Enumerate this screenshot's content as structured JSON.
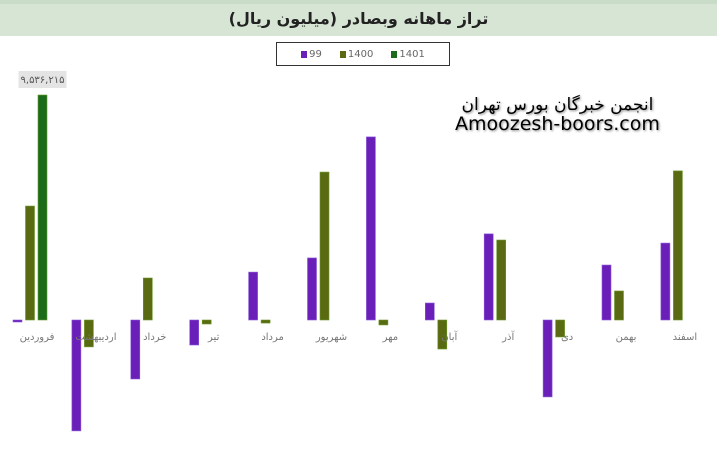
{
  "header": {
    "title": "تراز ماهانه وبصادر (میلیون ریال)"
  },
  "watermark": {
    "line1": "انجمن خبرگان بورس تهران",
    "line2": "Amoozesh-boors.com"
  },
  "chart_data": {
    "type": "bar",
    "title": "تراز ماهانه وبصادر (میلیون ریال)",
    "categories": [
      "فروردین",
      "اردیبهشت",
      "خرداد",
      "تیر",
      "مرداد",
      "شهریور",
      "مهر",
      "آبان",
      "آذر",
      "دی",
      "بهمن",
      "اسفند"
    ],
    "series": [
      {
        "name": "99",
        "color": "#6a1fb8",
        "values": [
          -40000,
          -4700000,
          -2500000,
          -1060000,
          2030000,
          2630000,
          7760000,
          720000,
          3650000,
          -3260000,
          2330000,
          3260000
        ]
      },
      {
        "name": "1400",
        "color": "#5a6a12",
        "values": [
          4830000,
          -1140000,
          1780000,
          -170000,
          -130000,
          6270000,
          -210000,
          -1230000,
          3390000,
          -720000,
          1230000,
          6320000
        ]
      },
      {
        "name": "1401",
        "color": "#1c6b1c",
        "values": [
          9536215,
          null,
          null,
          null,
          null,
          null,
          null,
          null,
          null,
          null,
          null,
          null
        ]
      }
    ],
    "data_labels": [
      {
        "series": "1401",
        "category": "فروردین",
        "text": "۹,۵۳۶,۲۱۵"
      }
    ],
    "legend": "top-center",
    "grid": false
  }
}
